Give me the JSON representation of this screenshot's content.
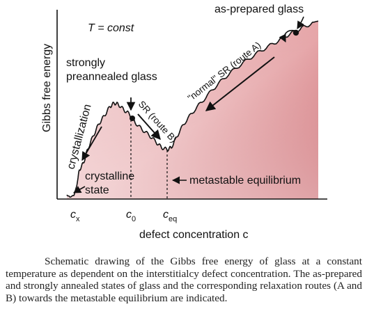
{
  "figure": {
    "temperature_note": "T = const",
    "y_axis_label": "Gibbs free energy",
    "x_axis_label": "defect concentration c",
    "x_ticks": [
      {
        "main": "c",
        "sub": "x"
      },
      {
        "main": "c",
        "sub": "0"
      },
      {
        "main": "c",
        "sub": "eq"
      }
    ],
    "annotations": {
      "as_prepared": "as-prepared glass",
      "normal_sr": "\"normal\" SR (route A)",
      "preannealed_line1": "strongly",
      "preannealed_line2": "preannealed glass",
      "sr_route_b": "SR (route B)",
      "crystallization": "crystallization",
      "crystalline_line1": "crystalline",
      "crystalline_line2": "state",
      "metastable": "metastable equilibrium"
    },
    "colors": {
      "fill_top": "#c0393f",
      "fill_bottom": "#fbf0f0",
      "line": "#111111"
    }
  },
  "caption": "Schematic drawing of the Gibbs free energy of glass at a constant temperature as dependent on the interstitialcy defect concentration. The as-prepared and strongly annealed states of glass and the corresponding relaxation routes (A and B) towards the metastable equilibrium are indicated."
}
